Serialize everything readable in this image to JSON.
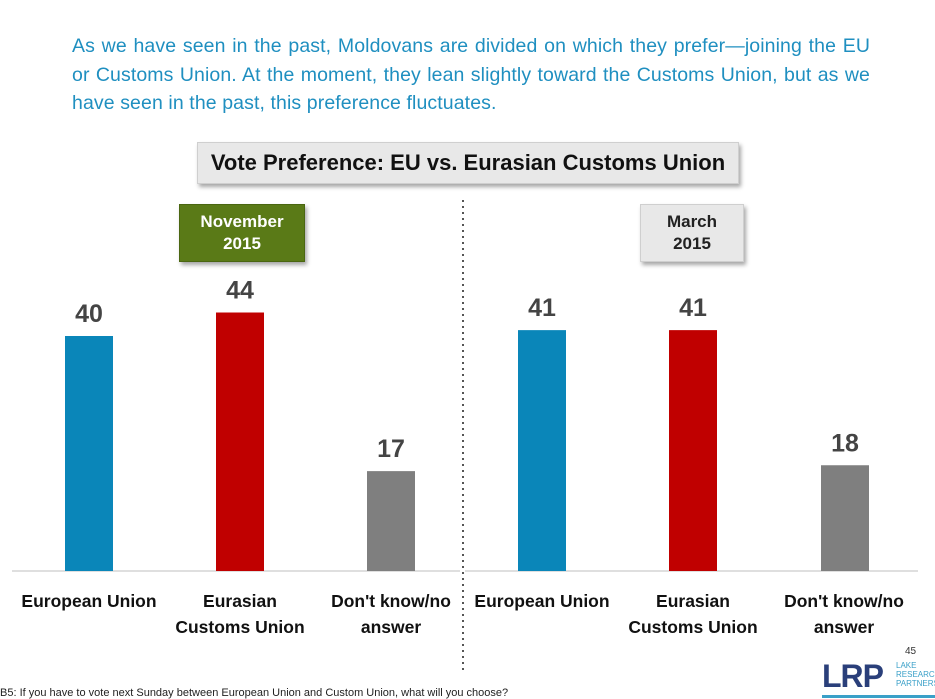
{
  "intro_text": "As we have seen in the past, Moldovans are divided on which they prefer—joining the EU or Customs Union. At the moment, they lean slightly toward the Customs Union, but as we have seen in the past, this preference fluctuates.",
  "chart_data": {
    "type": "bar",
    "title": "Vote Preference: EU vs. Eurasian Customs Union",
    "categories": [
      "European Union",
      "Eurasian\nCustoms Union",
      "Don't know/no\nanswer"
    ],
    "panels": [
      {
        "period": "November\n2015",
        "values": [
          40,
          44,
          17
        ]
      },
      {
        "period": "March\n2015",
        "values": [
          41,
          41,
          18
        ]
      }
    ],
    "bar_colors": [
      "#0a86b9",
      "#c00000",
      "#7f7f7f"
    ],
    "period_colors": [
      "#5a7a17",
      "#e8e8e8"
    ],
    "ylim": [
      0,
      60
    ],
    "grid": false
  },
  "footnote": "B5: If you have to vote next Sunday between European Union and Custom Union, what will you choose?",
  "page_number": "45",
  "logo": {
    "mark": "LRP",
    "sub": "LAKE\nRESEARCH\nPARTNERS"
  }
}
